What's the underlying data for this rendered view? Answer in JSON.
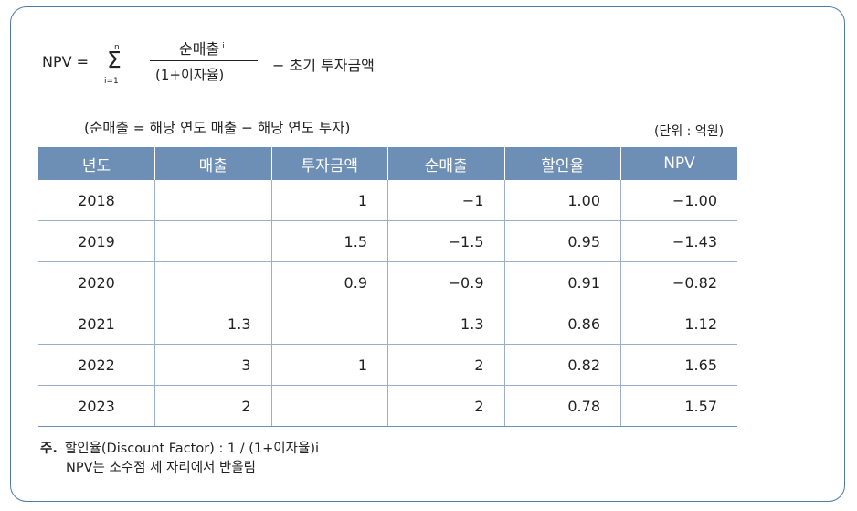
{
  "formula": {
    "lhs": "NPV =",
    "sum_upper": "n",
    "sum_symbol": "Σ",
    "sum_lower": "i=1",
    "numerator": "순매출",
    "numerator_sup": "i",
    "denominator": "(1+이자율)",
    "denominator_sup": "i",
    "minus_term": "− 초기 투자금액"
  },
  "subtitle": "(순매출 = 해당 연도 매출 − 해당 연도 투자)",
  "unit": "(단위 : 억원)",
  "table": {
    "headers": [
      "년도",
      "매출",
      "투자금액",
      "순매출",
      "할인율",
      "NPV"
    ],
    "rows": [
      [
        "2018",
        "",
        "1",
        "−1",
        "1.00",
        "−1.00"
      ],
      [
        "2019",
        "",
        "1.5",
        "−1.5",
        "0.95",
        "−1.43"
      ],
      [
        "2020",
        "",
        "0.9",
        "−0.9",
        "0.91",
        "−0.82"
      ],
      [
        "2021",
        "1.3",
        "",
        "1.3",
        "0.86",
        "1.12"
      ],
      [
        "2022",
        "3",
        "1",
        "2",
        "0.82",
        "1.65"
      ],
      [
        "2023",
        "2",
        "",
        "2",
        "0.78",
        "1.57"
      ]
    ]
  },
  "notes": {
    "mark": "주.",
    "line1": "할인율(Discount Factor) : 1 / (1+이자율)i",
    "line2": "NPV는 소수점 세 자리에서 반올림"
  }
}
